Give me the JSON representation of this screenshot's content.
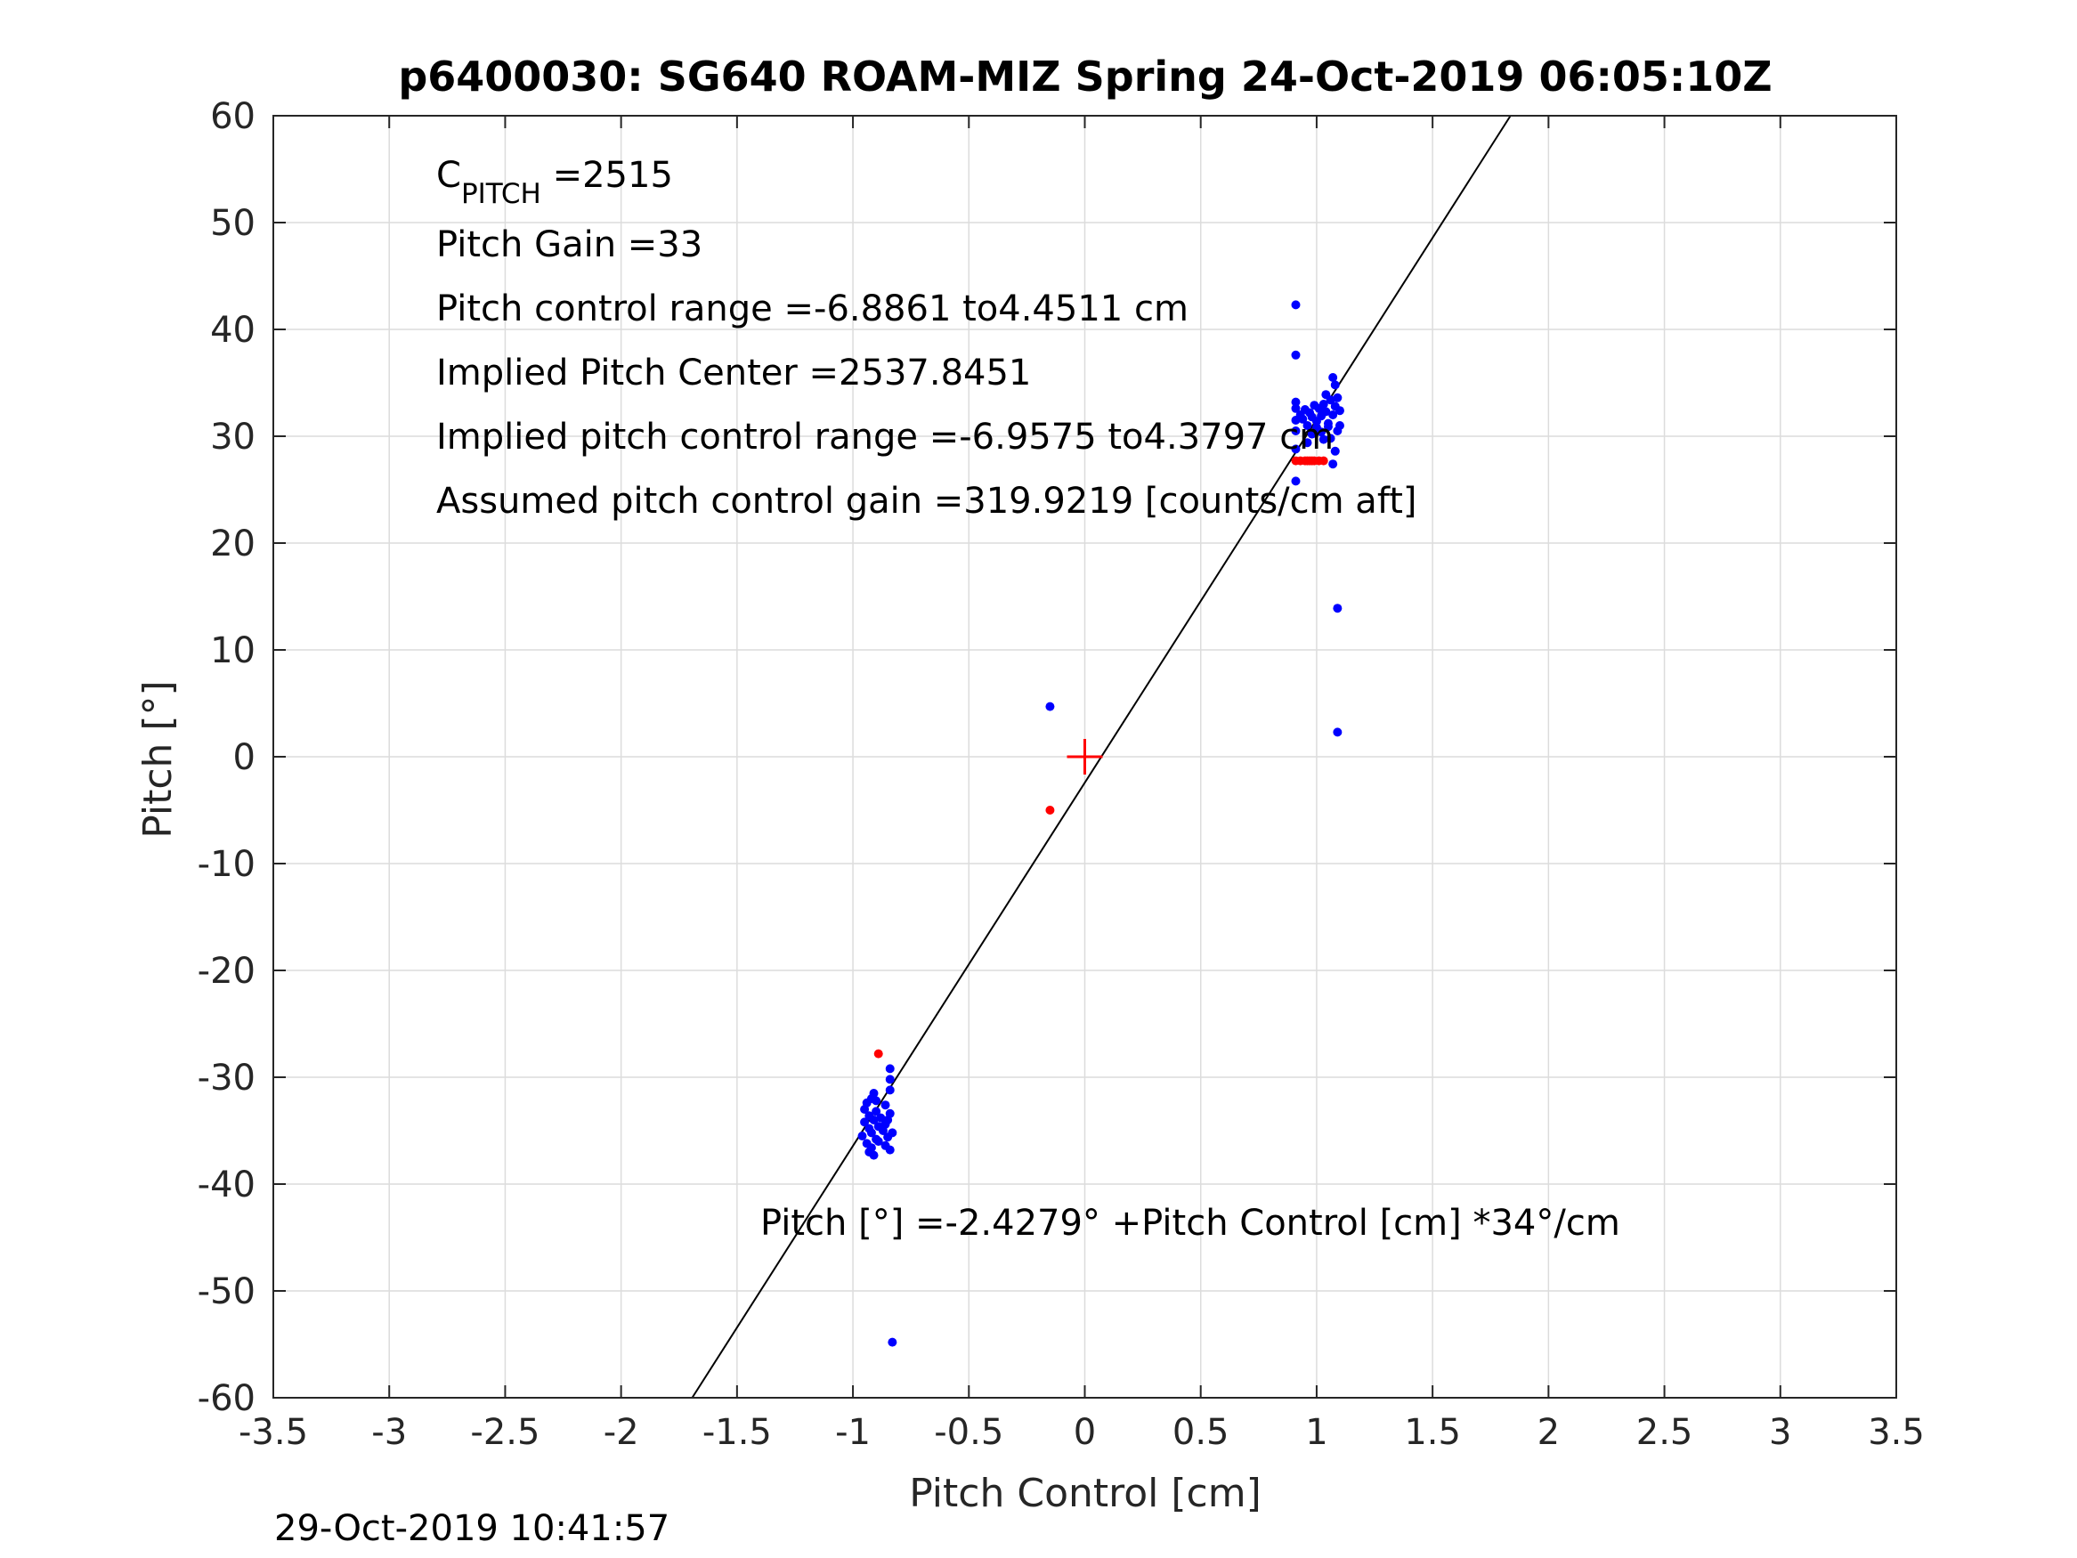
{
  "chart_data": {
    "type": "scatter",
    "title": "p6400030: SG640 ROAM-MIZ Spring 24-Oct-2019 06:05:10Z",
    "xlabel": "Pitch Control [cm]",
    "ylabel": "Pitch [°]",
    "xlim": [
      -3.5,
      3.5
    ],
    "ylim": [
      -60,
      60
    ],
    "xticks": [
      -3.5,
      -3,
      -2.5,
      -2,
      -1.5,
      -1,
      -0.5,
      0,
      0.5,
      1,
      1.5,
      2,
      2.5,
      3,
      3.5
    ],
    "yticks": [
      -60,
      -50,
      -40,
      -30,
      -20,
      -10,
      0,
      10,
      20,
      30,
      40,
      50,
      60
    ],
    "grid": true,
    "timestamp": "29-Oct-2019 10:41:57",
    "annotations": {
      "c_pitch_base": "C",
      "c_pitch_sub": "PITCH",
      "c_pitch_value": " =2515",
      "pitch_gain": "Pitch Gain =33",
      "pitch_control_range": "Pitch control range =-6.8861 to4.4511 cm",
      "implied_pitch_center": "Implied Pitch Center =2537.8451",
      "implied_pitch_control_range": "Implied pitch control range =-6.9575 to4.3797 cm",
      "assumed_gain": "Assumed pitch control gain =319.9219 [counts/cm aft]",
      "fit_equation": "Pitch [°] =-2.4279° +Pitch Control [cm] *34°/cm"
    },
    "fit_line": {
      "intercept": -2.4279,
      "slope": 34,
      "color": "#000000"
    },
    "center_marker": {
      "x": 0,
      "y": 0,
      "color": "#ff0000"
    },
    "series": [
      {
        "color": "#0000ff",
        "points": [
          [
            0.91,
            42.3
          ],
          [
            0.91,
            37.6
          ],
          [
            0.91,
            33.2
          ],
          [
            0.91,
            32.6
          ],
          [
            0.91,
            31.5
          ],
          [
            0.91,
            30.5
          ],
          [
            0.91,
            28.8
          ],
          [
            0.91,
            25.8
          ],
          [
            0.93,
            32.0
          ],
          [
            0.94,
            31.6
          ],
          [
            0.95,
            32.5
          ],
          [
            0.96,
            31.0
          ],
          [
            0.97,
            32.2
          ],
          [
            0.98,
            31.8
          ],
          [
            0.99,
            32.9
          ],
          [
            1.0,
            31.4
          ],
          [
            1.01,
            32.6
          ],
          [
            1.02,
            31.9
          ],
          [
            1.03,
            33.0
          ],
          [
            1.04,
            32.3
          ],
          [
            1.05,
            31.2
          ],
          [
            1.06,
            33.4
          ],
          [
            1.07,
            32.0
          ],
          [
            1.08,
            32.8
          ],
          [
            1.09,
            33.6
          ],
          [
            1.1,
            32.4
          ],
          [
            1.07,
            35.5
          ],
          [
            1.08,
            34.8
          ],
          [
            1.09,
            30.5
          ],
          [
            1.06,
            29.8
          ],
          [
            1.08,
            28.6
          ],
          [
            1.07,
            27.4
          ],
          [
            1.05,
            30.9
          ],
          [
            1.03,
            29.7
          ],
          [
            0.98,
            30.2
          ],
          [
            0.96,
            29.4
          ],
          [
            1.1,
            31.0
          ],
          [
            1.04,
            33.9
          ],
          [
            1.0,
            30.8
          ],
          [
            1.02,
            30.4
          ],
          [
            1.09,
            13.9
          ],
          [
            1.09,
            2.3
          ],
          [
            -0.15,
            4.7
          ],
          [
            -0.83,
            -54.8
          ],
          [
            -0.96,
            -35.5
          ],
          [
            -0.95,
            -34.2
          ],
          [
            -0.95,
            -33.0
          ],
          [
            -0.94,
            -36.2
          ],
          [
            -0.94,
            -32.4
          ],
          [
            -0.93,
            -34.8
          ],
          [
            -0.93,
            -33.6
          ],
          [
            -0.93,
            -37.0
          ],
          [
            -0.92,
            -35.2
          ],
          [
            -0.92,
            -32.0
          ],
          [
            -0.92,
            -36.6
          ],
          [
            -0.91,
            -34.0
          ],
          [
            -0.91,
            -31.5
          ],
          [
            -0.91,
            -37.3
          ],
          [
            -0.9,
            -35.8
          ],
          [
            -0.9,
            -33.2
          ],
          [
            -0.89,
            -34.6
          ],
          [
            -0.89,
            -36.0
          ],
          [
            -0.88,
            -33.8
          ],
          [
            -0.87,
            -35.0
          ],
          [
            -0.86,
            -34.4
          ],
          [
            -0.86,
            -36.4
          ],
          [
            -0.86,
            -32.6
          ],
          [
            -0.85,
            -35.6
          ],
          [
            -0.84,
            -33.4
          ],
          [
            -0.84,
            -36.8
          ],
          [
            -0.84,
            -31.2
          ],
          [
            -0.84,
            -30.2
          ],
          [
            -0.84,
            -29.2
          ],
          [
            -0.85,
            -34.0
          ],
          [
            -0.83,
            -35.2
          ],
          [
            -0.9,
            -32.2
          ]
        ]
      },
      {
        "color": "#ff0000",
        "points": [
          [
            0.91,
            27.7
          ],
          [
            0.93,
            27.7
          ],
          [
            0.95,
            27.7
          ],
          [
            0.96,
            27.7
          ],
          [
            0.97,
            27.7
          ],
          [
            0.98,
            27.7
          ],
          [
            0.99,
            27.7
          ],
          [
            1.01,
            27.7
          ],
          [
            1.03,
            27.7
          ],
          [
            -0.15,
            -5.0
          ],
          [
            -0.89,
            -27.8
          ]
        ]
      }
    ]
  }
}
